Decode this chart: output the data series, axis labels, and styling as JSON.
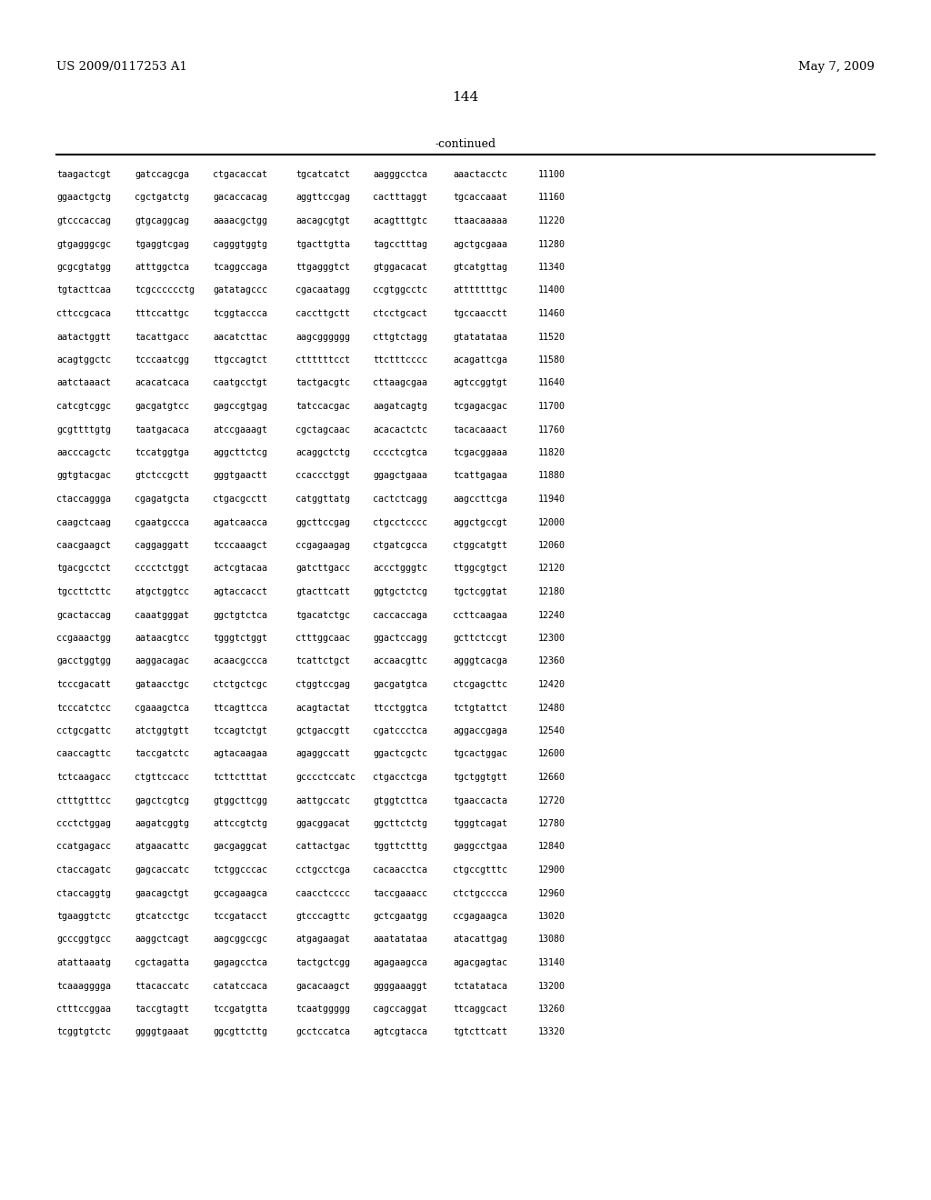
{
  "header_left": "US 2009/0117253 A1",
  "header_right": "May 7, 2009",
  "page_number": "144",
  "continued_label": "-continued",
  "background_color": "#ffffff",
  "text_color": "#000000",
  "sequence_lines": [
    [
      "taagactcgt",
      "gatccagcga",
      "ctgacaccat",
      "tgcatcatct",
      "aagggcctca",
      "aaactacctc",
      "11100"
    ],
    [
      "ggaactgctg",
      "cgctgatctg",
      "gacaccacag",
      "aggttccgag",
      "cactttaggt",
      "tgcaccaaat",
      "11160"
    ],
    [
      "gtcccaccag",
      "gtgcaggcag",
      "aaaacgctgg",
      "aacagcgtgt",
      "acagtttgtc",
      "ttaacaaaaa",
      "11220"
    ],
    [
      "gtgagggcgc",
      "tgaggtcgag",
      "cagggtggtg",
      "tgacttgtta",
      "tagcctttag",
      "agctgcgaaa",
      "11280"
    ],
    [
      "gcgcgtatgg",
      "atttggctca",
      "tcaggccaga",
      "ttgagggtct",
      "gtggacacat",
      "gtcatgttag",
      "11340"
    ],
    [
      "tgtacttcaa",
      "tcgcccccctg",
      "gatatagccc",
      "cgacaatagg",
      "ccgtggcctc",
      "atttttttgc",
      "11400"
    ],
    [
      "cttccgcaca",
      "tttccattgc",
      "tcggtaccca",
      "caccttgctt",
      "ctcctgcact",
      "tgccaacctt",
      "11460"
    ],
    [
      "aatactggtt",
      "tacattgacc",
      "aacatcttac",
      "aagcgggggg",
      "cttgtctagg",
      "gtatatataa",
      "11520"
    ],
    [
      "acagtggctc",
      "tcccaatcgg",
      "ttgccagtct",
      "cttttttcct",
      "ttctttcccc",
      "acagattcga",
      "11580"
    ],
    [
      "aatctaaact",
      "acacatcaca",
      "caatgcctgt",
      "tactgacgtc",
      "cttaagcgaa",
      "agtccggtgt",
      "11640"
    ],
    [
      "catcgtcggc",
      "gacgatgtcc",
      "gagccgtgag",
      "tatccacgac",
      "aagatcagtg",
      "tcgagacgac",
      "11700"
    ],
    [
      "gcgttttgtg",
      "taatgacaca",
      "atccgaaagt",
      "cgctagcaac",
      "acacactctc",
      "tacacaaact",
      "11760"
    ],
    [
      "aacccagctc",
      "tccatggtga",
      "aggcttctcg",
      "acaggctctg",
      "cccctcgtca",
      "tcgacggaaa",
      "11820"
    ],
    [
      "ggtgtacgac",
      "gtctccgctt",
      "gggtgaactt",
      "ccaccctggt",
      "ggagctgaaa",
      "tcattgagaa",
      "11880"
    ],
    [
      "ctaccaggga",
      "cgagatgcta",
      "ctgacgcctt",
      "catggttatg",
      "cactctcagg",
      "aagccttcga",
      "11940"
    ],
    [
      "caagctcaag",
      "cgaatgccca",
      "agatcaacca",
      "ggcttccgag",
      "ctgcctcccc",
      "aggctgccgt",
      "12000"
    ],
    [
      "caacgaagct",
      "caggaggatt",
      "tcccaaagct",
      "ccgagaagag",
      "ctgatcgcca",
      "ctggcatgtt",
      "12060"
    ],
    [
      "tgacgcctct",
      "cccctctggt",
      "actcgtacaa",
      "gatcttgacc",
      "accctgggtc",
      "ttggcgtgct",
      "12120"
    ],
    [
      "tgccttcttc",
      "atgctggtcc",
      "agtaccacct",
      "gtacttcatt",
      "ggtgctctcg",
      "tgctcggtat",
      "12180"
    ],
    [
      "gcactaccag",
      "caaatgggat",
      "ggctgtctca",
      "tgacatctgc",
      "caccaccaga",
      "ccttcaagaa",
      "12240"
    ],
    [
      "ccgaaactgg",
      "aataacgtcc",
      "tgggtctggt",
      "ctttggcaac",
      "ggactccagg",
      "gcttctccgt",
      "12300"
    ],
    [
      "gacctggtgg",
      "aaggacagac",
      "acaacgccca",
      "tcattctgct",
      "accaacgttc",
      "agggtcacga",
      "12360"
    ],
    [
      "tcccgacatt",
      "gataacctgc",
      "ctctgctcgc",
      "ctggtccgag",
      "gacgatgtca",
      "ctcgagcttc",
      "12420"
    ],
    [
      "tcccatctcc",
      "cgaaagctca",
      "ttcagttcca",
      "acagtactat",
      "ttcctggtca",
      "tctgtattct",
      "12480"
    ],
    [
      "cctgcgattc",
      "atctggtgtt",
      "tccagtctgt",
      "gctgaccgtt",
      "cgatccctca",
      "aggaccgaga",
      "12540"
    ],
    [
      "caaccagttc",
      "taccgatctc",
      "agtacaagaa",
      "agaggccatt",
      "ggactcgctc",
      "tgcactggac",
      "12600"
    ],
    [
      "tctcaagacc",
      "ctgttccacc",
      "tcttctttat",
      "gcccctccatc",
      "ctgacctcga",
      "tgctggtgtt",
      "12660"
    ],
    [
      "ctttgtttcc",
      "gagctcgtcg",
      "gtggcttcgg",
      "aattgccatc",
      "gtggtcttca",
      "tgaaccacta",
      "12720"
    ],
    [
      "ccctctggag",
      "aagatcggtg",
      "attccgtctg",
      "ggacggacat",
      "ggcttctctg",
      "tgggtcagat",
      "12780"
    ],
    [
      "ccatgagacc",
      "atgaacattc",
      "gacgaggcat",
      "cattactgac",
      "tggttctttg",
      "gaggcctgaa",
      "12840"
    ],
    [
      "ctaccagatc",
      "gagcaccatc",
      "tctggcccac",
      "cctgcctcga",
      "cacaacctca",
      "ctgccgtttc",
      "12900"
    ],
    [
      "ctaccaggtg",
      "gaacagctgt",
      "gccagaagca",
      "caacctcccc",
      "taccgaaacc",
      "ctctgcccca",
      "12960"
    ],
    [
      "tgaaggtctc",
      "gtcatcctgc",
      "tccgatacct",
      "gtcccagttc",
      "gctcgaatgg",
      "ccgagaagca",
      "13020"
    ],
    [
      "gcccggtgcc",
      "aaggctcagt",
      "aagcggccgc",
      "atgagaagat",
      "aaatatataa",
      "atacattgag",
      "13080"
    ],
    [
      "atattaaatg",
      "cgctagatta",
      "gagagcctca",
      "tactgctcgg",
      "agagaagcca",
      "agacgagtac",
      "13140"
    ],
    [
      "tcaaagggga",
      "ttacaccatc",
      "catatccaca",
      "gacacaagct",
      "ggggaaaggt",
      "tctatataca",
      "13200"
    ],
    [
      "ctttccggaa",
      "taccgtagtt",
      "tccgatgtta",
      "tcaatggggg",
      "cagccaggat",
      "ttcaggcact",
      "13260"
    ],
    [
      "tcggtgtctc",
      "ggggtgaaat",
      "ggcgttcttg",
      "gcctccatca",
      "agtcgtacca",
      "tgtcttcatt",
      "13320"
    ]
  ]
}
